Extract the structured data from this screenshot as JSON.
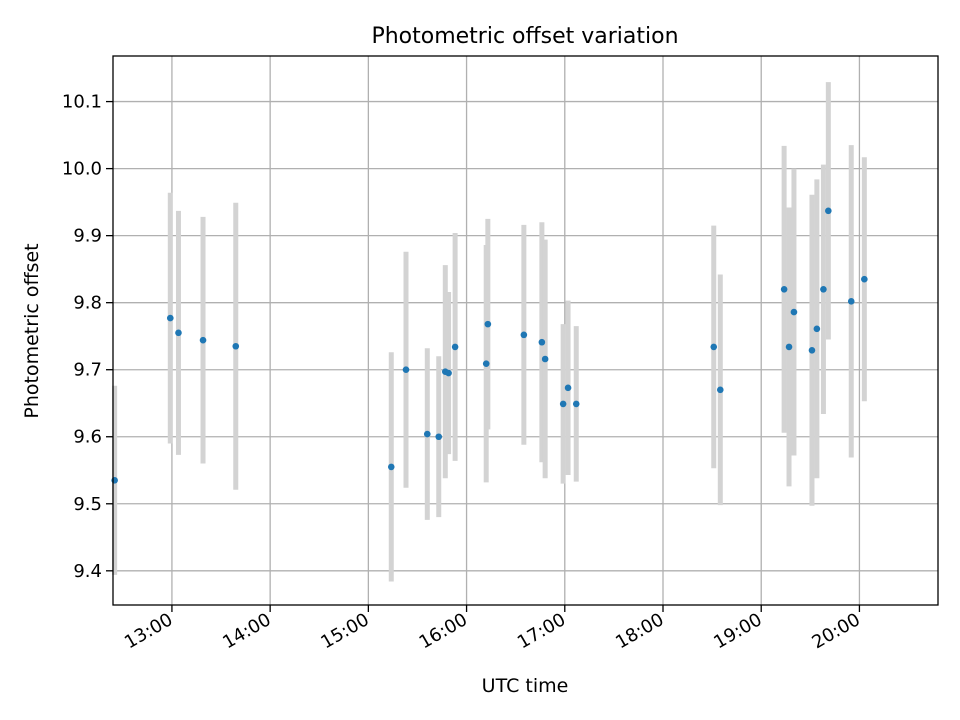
{
  "chart_data": {
    "type": "scatter",
    "title": "Photometric offset variation",
    "xlabel": "UTC time",
    "ylabel": "Photometric offset",
    "xlim": [
      "12:24",
      "20:48"
    ],
    "ylim": [
      9.349,
      10.168
    ],
    "x_ticks": [
      "13:00",
      "14:00",
      "15:00",
      "16:00",
      "17:00",
      "18:00",
      "19:00",
      "20:00"
    ],
    "y_ticks": [
      "9.4",
      "9.5",
      "9.6",
      "9.7",
      "9.8",
      "9.9",
      "10.0",
      "10.1"
    ],
    "grid": true,
    "legend": "none",
    "colors": {
      "marker": "#1f77b4",
      "errorbar": "#d3d3d3",
      "grid": "#b0b0b0",
      "axes": "#000000"
    },
    "series": [
      {
        "x": [
          "12:25",
          "12:59",
          "13:04",
          "13:19",
          "13:39",
          "15:14",
          "15:23",
          "15:36",
          "15:43",
          "15:47",
          "15:49",
          "15:53",
          "16:12",
          "16:13",
          "16:35",
          "16:46",
          "16:48",
          "16:59",
          "17:02",
          "17:07",
          "18:31",
          "18:35",
          "19:14",
          "19:17",
          "19:20",
          "19:31",
          "19:34",
          "19:38",
          "19:41",
          "19:55",
          "20:03"
        ],
        "y": [
          9.535,
          9.777,
          9.755,
          9.744,
          9.735,
          9.555,
          9.7,
          9.604,
          9.6,
          9.697,
          9.695,
          9.734,
          9.709,
          9.768,
          9.752,
          9.741,
          9.716,
          9.649,
          9.673,
          9.649,
          9.734,
          9.67,
          9.82,
          9.734,
          9.786,
          9.729,
          9.761,
          9.82,
          9.937,
          9.802,
          9.835
        ],
        "yerr": [
          0.141,
          0.187,
          0.182,
          0.184,
          0.214,
          0.171,
          0.176,
          0.128,
          0.12,
          0.159,
          0.121,
          0.17,
          0.177,
          0.157,
          0.164,
          0.179,
          0.178,
          0.119,
          0.13,
          0.116,
          0.181,
          0.172,
          0.214,
          0.208,
          0.214,
          0.232,
          0.223,
          0.186,
          0.192,
          0.233,
          0.182
        ]
      }
    ]
  }
}
